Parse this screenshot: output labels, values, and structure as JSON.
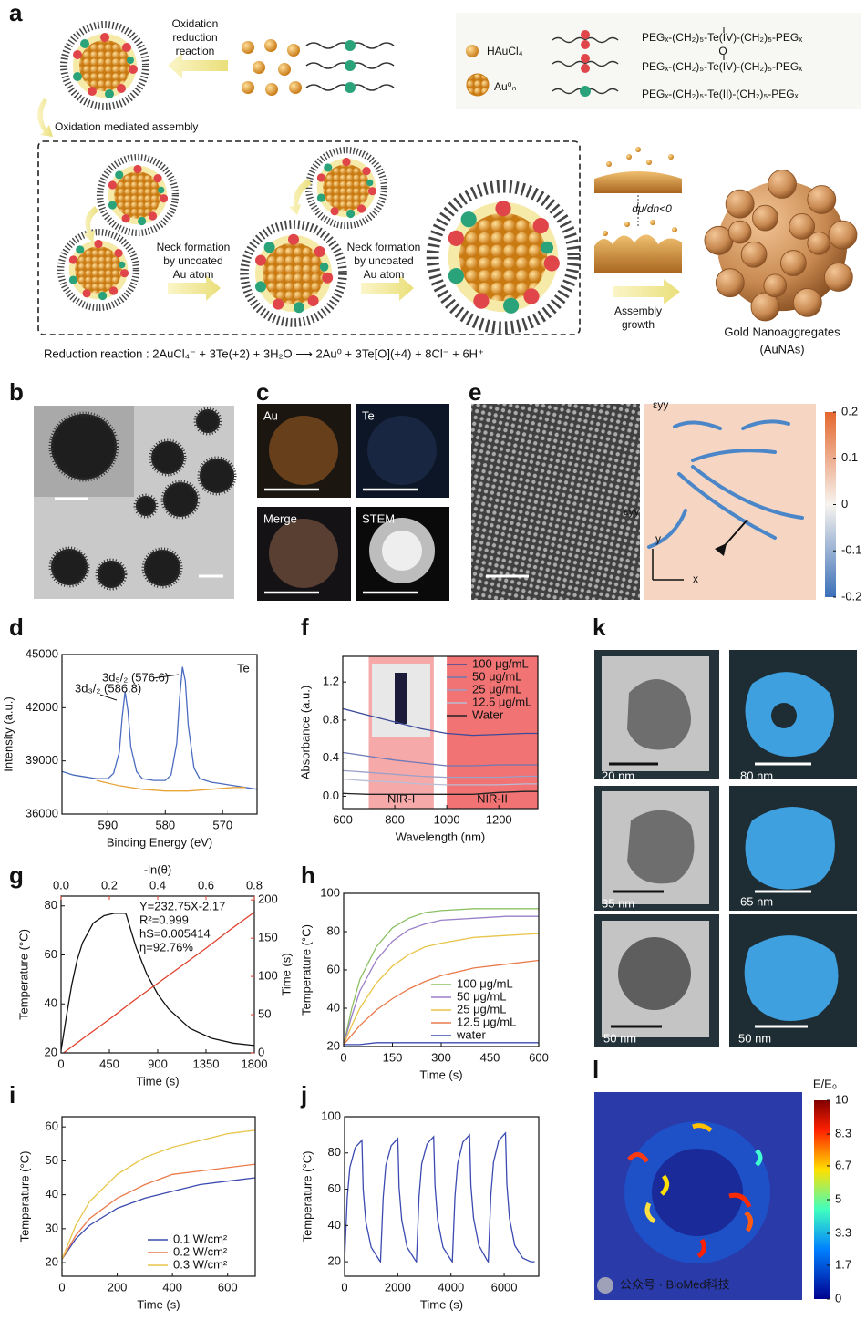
{
  "panel_labels": [
    "a",
    "b",
    "c",
    "e",
    "d",
    "f",
    "k",
    "g",
    "h",
    "i",
    "j",
    "l"
  ],
  "scheme": {
    "oxidation_reduction": [
      "Oxidation",
      "reduction",
      "reaction"
    ],
    "legend": {
      "haucl4": "HAuCl₄",
      "au": "Au⁰ₙ",
      "peg": [
        "PEGₓ-(CH₂)₅-Te(IV)-(CH₂)₅-PEGₓ",
        "O",
        "PEGₓ-(CH₂)₅-Te(IV)-(CH₂)₅-PEGₓ",
        "PEGₓ-(CH₂)₅-Te(II)-(CH₂)₅-PEGₓ"
      ]
    },
    "assembly": "Oxidation mediated assembly",
    "neck": [
      [
        "Neck formation",
        "by uncoated",
        "Au atom"
      ],
      [
        "Neck formation",
        "by uncoated",
        "Au atom"
      ]
    ],
    "potential": "dμ/dn<0",
    "growth": [
      "Assembly",
      "growth"
    ],
    "product": [
      "Gold Nanoaggregates",
      "(AuNAs)"
    ],
    "reaction": "Reduction reaction : 2AuCl₄⁻ + 3Te(+2) + 3H₂O ⟶ 2Au⁰ + 3Te[O](+4) + 8Cl⁻ + 6H⁺"
  },
  "images": {
    "c_labels": [
      "Au",
      "Te",
      "Merge",
      "STEM"
    ],
    "e_strain_labels": [
      "εyy",
      "εyy"
    ],
    "e_axis_labels": [
      "y",
      "x"
    ],
    "e_colorbar": {
      "lim": [
        -0.2,
        0.2
      ],
      "ticks": [
        0.2,
        0.1,
        0,
        -0.1,
        -0.2
      ]
    },
    "k_scale_labels": [
      "20 nm",
      "80 nm",
      "35 nm",
      "65 nm",
      "50 nm",
      "50 nm"
    ],
    "l_colorbar": {
      "title": "E/E₀",
      "lim": [
        0,
        10
      ],
      "ticks": [
        10,
        8.3,
        6.7,
        5,
        3.3,
        1.7,
        0
      ]
    },
    "watermark": "公众号 · BioMed科技"
  },
  "chart_data": [
    {
      "type": "line",
      "title": "Te",
      "xlabel": "Binding Energy (eV)",
      "ylabel": "Intensity (a.u.)",
      "xlim": [
        598,
        564
      ],
      "xticks": [
        590,
        580,
        570
      ],
      "ylim": [
        36000,
        45000
      ],
      "yticks": [
        36000,
        39000,
        42000,
        45000
      ],
      "annotations": [
        "3d₅/₂ (576.6)",
        "3d₃/₂ (586.8)"
      ],
      "series": [
        {
          "color": "#4a6bc0",
          "x": [
            598,
            596,
            594,
            592,
            590,
            589,
            588,
            587.5,
            587,
            586.5,
            586,
            585,
            584,
            582,
            580,
            579,
            578,
            577.5,
            577,
            576.5,
            576,
            575,
            574,
            572,
            570,
            568,
            566,
            564
          ],
          "values": [
            38400,
            38200,
            38100,
            38000,
            38000,
            38300,
            39500,
            41500,
            42900,
            41800,
            39800,
            38400,
            38000,
            37900,
            37900,
            38200,
            40000,
            42500,
            44300,
            43500,
            41000,
            38600,
            38000,
            37800,
            37700,
            37600,
            37500,
            37400
          ]
        },
        {
          "color": "#e8a33a",
          "x": [
            592,
            588,
            584,
            580,
            576,
            572,
            568,
            566
          ],
          "values": [
            37900,
            37600,
            37400,
            37300,
            37300,
            37400,
            37500,
            37500
          ]
        }
      ]
    },
    {
      "type": "line",
      "xlabel": "Wavelength (nm)",
      "ylabel": "Absorbance (a.u.)",
      "xlim": [
        600,
        1350
      ],
      "xticks": [
        600,
        800,
        1000,
        1200
      ],
      "ylim": [
        -0.13,
        1.47
      ],
      "yticks": [
        {
          "value": 0,
          "label": "0.0"
        },
        0.4,
        0.8,
        1.2
      ],
      "shaded_ranges": [
        {
          "label": "NIR-I",
          "range": [
            700,
            950
          ],
          "color": "#f39a9a"
        },
        {
          "label": "NIR-II",
          "range": [
            1000,
            1350
          ],
          "color": "#ee5a5a"
        }
      ],
      "legend": "upper right",
      "x": [
        600,
        700,
        800,
        900,
        1000,
        1100,
        1200,
        1300,
        1350
      ],
      "series": [
        {
          "name": "100 μg/mL",
          "color": "#3d4a9a",
          "values": [
            0.92,
            0.85,
            0.78,
            0.71,
            0.66,
            0.64,
            0.65,
            0.66,
            0.66
          ]
        },
        {
          "name": "50 μg/mL",
          "color": "#6f79b5",
          "values": [
            0.46,
            0.42,
            0.38,
            0.35,
            0.32,
            0.32,
            0.33,
            0.33,
            0.33
          ]
        },
        {
          "name": "25 μg/mL",
          "color": "#9aa0c8",
          "values": [
            0.27,
            0.25,
            0.23,
            0.21,
            0.2,
            0.2,
            0.2,
            0.21,
            0.21
          ]
        },
        {
          "name": "12.5 μg/mL",
          "color": "#b9bdd8",
          "values": [
            0.18,
            0.16,
            0.15,
            0.13,
            0.12,
            0.12,
            0.12,
            0.13,
            0.13
          ]
        },
        {
          "name": "Water",
          "color": "#222222",
          "values": [
            0.03,
            0.02,
            0.02,
            0.02,
            0.02,
            0.02,
            0.04,
            0.05,
            0.05
          ]
        }
      ]
    },
    {
      "type": "line",
      "xlabel": "Time (s)",
      "x2label": "-ln(θ)",
      "ylabel": "Temperature (°C)",
      "y2label": "Time (s)",
      "xlim": [
        0,
        1800
      ],
      "xticks": [
        0,
        450,
        900,
        1350,
        1800
      ],
      "x2lim": [
        0,
        0.8
      ],
      "x2ticks": [
        {
          "value": 0,
          "label": "0.0"
        },
        0.2,
        0.4,
        0.6,
        0.8
      ],
      "ylim": [
        20,
        84
      ],
      "yticks": [
        20,
        40,
        60,
        80
      ],
      "y2lim": [
        0,
        205
      ],
      "y2ticks": [
        0,
        50,
        100,
        150,
        200
      ],
      "annotations": [
        "Y=232.75X-2.17",
        "R²=0.999",
        "hS=0.005414",
        "η=92.76%"
      ],
      "series": [
        {
          "color": "#111111",
          "x": [
            0,
            50,
            100,
            150,
            200,
            300,
            400,
            500,
            600,
            610,
            650,
            700,
            800,
            900,
            1000,
            1200,
            1400,
            1600,
            1800
          ],
          "values": [
            21,
            35,
            48,
            58,
            65,
            73,
            76,
            77,
            77,
            76,
            70,
            63,
            52,
            44,
            38,
            30,
            26,
            24,
            23
          ]
        },
        {
          "color": "#e0402c",
          "axis": "y2",
          "xaxis": "x2",
          "x": [
            0.01,
            0.1,
            0.2,
            0.3,
            0.4,
            0.5,
            0.6,
            0.7,
            0.8
          ],
          "values": [
            0,
            21,
            44,
            68,
            91,
            114,
            137,
            161,
            184
          ]
        }
      ]
    },
    {
      "type": "line",
      "xlabel": "Time (s)",
      "ylabel": "Temperature (°C)",
      "xlim": [
        0,
        600
      ],
      "xticks": [
        0,
        150,
        300,
        450,
        600
      ],
      "ylim": [
        20,
        100
      ],
      "yticks": [
        20,
        40,
        60,
        80,
        100
      ],
      "legend": "lower right",
      "x": [
        0,
        25,
        50,
        100,
        150,
        200,
        250,
        300,
        400,
        500,
        600
      ],
      "series": [
        {
          "name": "100 μg/mL",
          "color": "#8cc063",
          "values": [
            21,
            40,
            55,
            72,
            82,
            87,
            90,
            91,
            92,
            92,
            92
          ]
        },
        {
          "name": "50 μg/mL",
          "color": "#9a7fc9",
          "values": [
            21,
            36,
            49,
            65,
            75,
            81,
            84,
            86,
            87,
            88,
            88
          ]
        },
        {
          "name": "25 μg/mL",
          "color": "#e8c54a",
          "values": [
            21,
            31,
            40,
            53,
            62,
            68,
            72,
            74,
            77,
            78,
            79
          ]
        },
        {
          "name": "12.5 μg/mL",
          "color": "#ea7a4a",
          "values": [
            21,
            26,
            31,
            39,
            45,
            50,
            54,
            57,
            61,
            63,
            65
          ]
        },
        {
          "name": "water",
          "color": "#3a4ab0",
          "values": [
            21,
            21,
            21,
            22,
            22,
            22,
            22,
            22,
            22,
            22,
            22
          ]
        }
      ]
    },
    {
      "type": "line",
      "xlabel": "Time (s)",
      "ylabel": "Temperature (°C)",
      "xlim": [
        0,
        700
      ],
      "xticks": [
        0,
        200,
        400,
        600
      ],
      "ylim": [
        16,
        63
      ],
      "yticks": [
        20,
        30,
        40,
        50,
        60
      ],
      "legend": "lower right",
      "x": [
        0,
        50,
        100,
        200,
        300,
        400,
        500,
        600,
        700
      ],
      "series": [
        {
          "name": "0.1 W/cm²",
          "color": "#3b4ab0",
          "values": [
            21,
            27,
            31,
            36,
            39,
            41,
            43,
            44,
            45
          ]
        },
        {
          "name": "0.2 W/cm²",
          "color": "#ea7a4a",
          "values": [
            21,
            28,
            33,
            39,
            43,
            46,
            47,
            48,
            49
          ]
        },
        {
          "name": "0.3 W/cm²",
          "color": "#e8c54a",
          "values": [
            21,
            31,
            38,
            46,
            51,
            54,
            56,
            58,
            59
          ]
        }
      ]
    },
    {
      "type": "line",
      "xlabel": "Time (s)",
      "ylabel": "Temperature (°C)",
      "xlim": [
        0,
        7300
      ],
      "xticks": [
        0,
        2000,
        4000,
        6000
      ],
      "ylim": [
        12,
        100
      ],
      "yticks": [
        20,
        40,
        60,
        80,
        100
      ],
      "series": [
        {
          "color": "#3b4ab0",
          "x": [
            0,
            100,
            200,
            400,
            650,
            700,
            800,
            1000,
            1300,
            1350,
            1450,
            1550,
            1750,
            2000,
            2050,
            2150,
            2350,
            2650,
            2700,
            2800,
            2900,
            3100,
            3350,
            3400,
            3500,
            3700,
            4000,
            4050,
            4150,
            4250,
            4450,
            4700,
            4750,
            4850,
            5050,
            5350,
            5400,
            5500,
            5600,
            5800,
            6050,
            6100,
            6200,
            6400,
            6700,
            7000,
            7150
          ],
          "values": [
            20,
            55,
            72,
            83,
            87,
            60,
            42,
            28,
            21,
            20,
            55,
            73,
            84,
            88,
            61,
            43,
            28,
            21,
            20,
            56,
            74,
            85,
            89,
            62,
            43,
            28,
            21,
            20,
            56,
            74,
            86,
            90,
            62,
            44,
            29,
            21,
            20,
            57,
            75,
            87,
            91,
            63,
            44,
            29,
            22,
            20,
            20
          ]
        }
      ]
    }
  ]
}
